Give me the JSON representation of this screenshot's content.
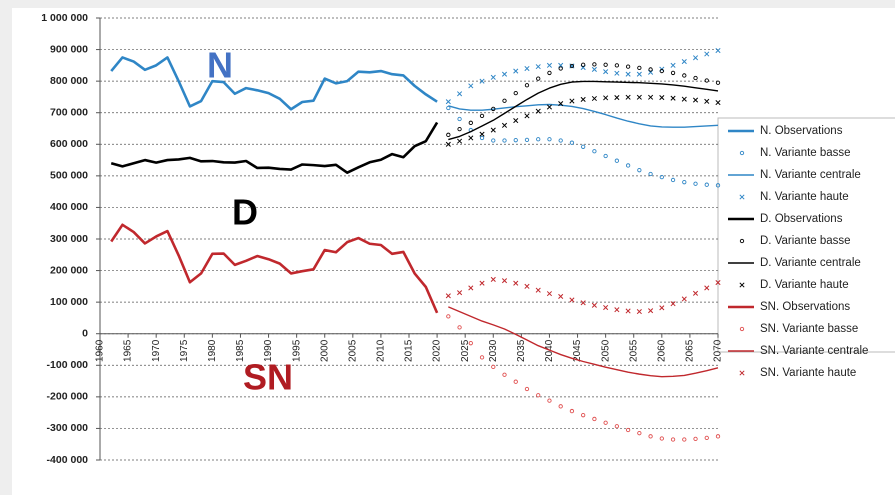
{
  "chart_data": {
    "type": "line",
    "annotations": [
      {
        "text": "N",
        "color": "#4472c4"
      },
      {
        "text": "D",
        "color": "#000000"
      },
      {
        "text": "SN",
        "color": "#b01c22"
      }
    ],
    "xlim": [
      1960,
      2070
    ],
    "xticks": [
      1960,
      1965,
      1970,
      1975,
      1980,
      1985,
      1990,
      1995,
      2000,
      2005,
      2010,
      2015,
      2020,
      2025,
      2030,
      2035,
      2040,
      2045,
      2050,
      2055,
      2060,
      2065,
      2070
    ],
    "ylim": [
      -400000,
      1000000
    ],
    "yticks": [
      {
        "value": -400000,
        "label": "-400 000"
      },
      {
        "value": -300000,
        "label": "-300 000"
      },
      {
        "value": -200000,
        "label": "-200 000"
      },
      {
        "value": -100000,
        "label": "-100 000"
      },
      0,
      {
        "value": 100000,
        "label": "100 000"
      },
      {
        "value": 200000,
        "label": "200 000"
      },
      {
        "value": 300000,
        "label": "300 000"
      },
      {
        "value": 400000,
        "label": "400 000"
      },
      {
        "value": 500000,
        "label": "500 000"
      },
      {
        "value": 600000,
        "label": "600 000"
      },
      {
        "value": 700000,
        "label": "700 000"
      },
      {
        "value": 800000,
        "label": "800 000"
      },
      {
        "value": 900000,
        "label": "900 000"
      },
      {
        "value": 1000000,
        "label": "1 000 000"
      }
    ],
    "grid": true,
    "legend": "right",
    "series": [
      {
        "name": "N. Observations",
        "color": "#2f86c6",
        "style": "thick-line",
        "x": [
          1962,
          1964,
          1966,
          1968,
          1970,
          1972,
          1974,
          1976,
          1978,
          1980,
          1982,
          1984,
          1986,
          1988,
          1990,
          1992,
          1994,
          1996,
          1998,
          2000,
          2002,
          2004,
          2006,
          2008,
          2010,
          2012,
          2014,
          2016,
          2018,
          2020
        ],
        "values": [
          832000,
          875000,
          862000,
          836000,
          850000,
          875000,
          800000,
          720000,
          737000,
          800000,
          797000,
          760000,
          778000,
          771000,
          762000,
          744000,
          711000,
          734000,
          738000,
          808000,
          793000,
          800000,
          830000,
          828000,
          832000,
          822000,
          818000,
          785000,
          758000,
          735000
        ]
      },
      {
        "name": "N. Variante basse",
        "color": "#2f86c6",
        "style": "circle",
        "x": [
          2022,
          2024,
          2026,
          2028,
          2030,
          2032,
          2034,
          2036,
          2038,
          2040,
          2042,
          2044,
          2046,
          2048,
          2050,
          2052,
          2054,
          2056,
          2058,
          2060,
          2062,
          2064,
          2066,
          2068,
          2070
        ],
        "values": [
          715000,
          680000,
          645000,
          620000,
          612000,
          612000,
          613000,
          614000,
          616000,
          616000,
          612000,
          605000,
          592000,
          578000,
          563000,
          548000,
          533000,
          518000,
          506000,
          496000,
          487000,
          480000,
          475000,
          472000,
          470000
        ]
      },
      {
        "name": "N. Variante centrale",
        "color": "#2f86c6",
        "style": "line",
        "x": [
          2022,
          2024,
          2026,
          2028,
          2030,
          2032,
          2034,
          2036,
          2038,
          2040,
          2042,
          2044,
          2046,
          2048,
          2050,
          2052,
          2054,
          2056,
          2058,
          2060,
          2062,
          2064,
          2066,
          2068,
          2070
        ],
        "values": [
          722000,
          712000,
          708000,
          708000,
          711000,
          715000,
          719000,
          722000,
          725000,
          726000,
          724000,
          720000,
          713000,
          704000,
          694000,
          683000,
          673000,
          665000,
          658000,
          655000,
          654000,
          654000,
          656000,
          658000,
          660000
        ]
      },
      {
        "name": "N. Variante haute",
        "color": "#2f86c6",
        "style": "cross",
        "x": [
          2022,
          2024,
          2026,
          2028,
          2030,
          2032,
          2034,
          2036,
          2038,
          2040,
          2042,
          2044,
          2046,
          2048,
          2050,
          2052,
          2054,
          2056,
          2058,
          2060,
          2062,
          2064,
          2066,
          2068,
          2070
        ],
        "values": [
          735000,
          760000,
          785000,
          800000,
          812000,
          822000,
          832000,
          840000,
          846000,
          850000,
          850000,
          848000,
          843000,
          837000,
          830000,
          825000,
          822000,
          822000,
          828000,
          838000,
          850000,
          862000,
          874000,
          886000,
          897000
        ]
      },
      {
        "name": "D. Observations",
        "color": "#000000",
        "style": "thick-line",
        "x": [
          1962,
          1964,
          1966,
          1968,
          1970,
          1972,
          1974,
          1976,
          1978,
          1980,
          1982,
          1984,
          1986,
          1988,
          1990,
          1992,
          1994,
          1996,
          1998,
          2000,
          2002,
          2004,
          2006,
          2008,
          2010,
          2012,
          2014,
          2016,
          2018,
          2020
        ],
        "values": [
          540000,
          530000,
          540000,
          550000,
          542000,
          550000,
          552000,
          557000,
          546000,
          547000,
          543000,
          542000,
          547000,
          525000,
          526000,
          522000,
          520000,
          536000,
          534000,
          531000,
          535000,
          510000,
          527000,
          543000,
          551000,
          569000,
          559000,
          594000,
          610000,
          669000
        ]
      },
      {
        "name": "D. Variante basse",
        "color": "#000000",
        "style": "circle",
        "x": [
          2022,
          2024,
          2026,
          2028,
          2030,
          2032,
          2034,
          2036,
          2038,
          2040,
          2042,
          2044,
          2046,
          2048,
          2050,
          2052,
          2054,
          2056,
          2058,
          2060,
          2062,
          2064,
          2066,
          2068,
          2070
        ],
        "values": [
          630000,
          648000,
          668000,
          690000,
          712000,
          738000,
          762000,
          787000,
          808000,
          826000,
          840000,
          848000,
          852000,
          853000,
          852000,
          850000,
          846000,
          842000,
          837000,
          832000,
          826000,
          818000,
          810000,
          802000,
          795000
        ]
      },
      {
        "name": "D. Variante centrale",
        "color": "#000000",
        "style": "line",
        "x": [
          2022,
          2024,
          2026,
          2028,
          2030,
          2032,
          2034,
          2036,
          2038,
          2040,
          2042,
          2044,
          2046,
          2048,
          2050,
          2052,
          2054,
          2056,
          2058,
          2060,
          2062,
          2064,
          2066,
          2068,
          2070
        ],
        "values": [
          615000,
          625000,
          640000,
          658000,
          676000,
          698000,
          720000,
          742000,
          762000,
          778000,
          790000,
          797000,
          799000,
          799000,
          798000,
          797000,
          796000,
          795000,
          793000,
          791000,
          788000,
          784000,
          779000,
          774000,
          769000
        ]
      },
      {
        "name": "D. Variante haute",
        "color": "#000000",
        "style": "cross",
        "x": [
          2022,
          2024,
          2026,
          2028,
          2030,
          2032,
          2034,
          2036,
          2038,
          2040,
          2042,
          2044,
          2046,
          2048,
          2050,
          2052,
          2054,
          2056,
          2058,
          2060,
          2062,
          2064,
          2066,
          2068,
          2070
        ],
        "values": [
          600000,
          610000,
          620000,
          632000,
          645000,
          660000,
          675000,
          690000,
          705000,
          718000,
          729000,
          737000,
          742000,
          745000,
          747000,
          748000,
          749000,
          749000,
          749000,
          748000,
          746000,
          743000,
          740000,
          736000,
          732000
        ]
      },
      {
        "name": "SN. Observations",
        "color": "#c0282d",
        "style": "thick-line",
        "x": [
          1962,
          1964,
          1966,
          1968,
          1970,
          1972,
          1974,
          1976,
          1978,
          1980,
          1982,
          1984,
          1986,
          1988,
          1990,
          1992,
          1994,
          1996,
          1998,
          2000,
          2002,
          2004,
          2006,
          2008,
          2010,
          2012,
          2014,
          2016,
          2018,
          2020
        ],
        "values": [
          292000,
          345000,
          322000,
          286000,
          308000,
          325000,
          248000,
          163000,
          191000,
          253000,
          254000,
          218000,
          231000,
          246000,
          236000,
          222000,
          191000,
          198000,
          204000,
          265000,
          258000,
          290000,
          303000,
          285000,
          281000,
          253000,
          259000,
          191000,
          148000,
          66000
        ]
      },
      {
        "name": "SN. Variante basse",
        "color": "#e05050",
        "style": "circle",
        "x": [
          2022,
          2024,
          2026,
          2028,
          2030,
          2032,
          2034,
          2036,
          2038,
          2040,
          2042,
          2044,
          2046,
          2048,
          2050,
          2052,
          2054,
          2056,
          2058,
          2060,
          2062,
          2064,
          2066,
          2068,
          2070
        ],
        "values": [
          55000,
          20000,
          -30000,
          -75000,
          -105000,
          -130000,
          -152000,
          -175000,
          -195000,
          -212000,
          -230000,
          -245000,
          -258000,
          -270000,
          -282000,
          -293000,
          -305000,
          -315000,
          -325000,
          -332000,
          -335000,
          -335000,
          -333000,
          -330000,
          -325000
        ]
      },
      {
        "name": "SN. Variante centrale",
        "color": "#c0282d",
        "style": "line",
        "x": [
          2022,
          2024,
          2026,
          2028,
          2030,
          2032,
          2034,
          2036,
          2038,
          2040,
          2042,
          2044,
          2046,
          2048,
          2050,
          2052,
          2054,
          2056,
          2058,
          2060,
          2062,
          2064,
          2066,
          2068,
          2070
        ],
        "values": [
          85000,
          70000,
          55000,
          40000,
          28000,
          15000,
          -2000,
          -20000,
          -38000,
          -52000,
          -66000,
          -78000,
          -88000,
          -97000,
          -106000,
          -114000,
          -122000,
          -128000,
          -133000,
          -136000,
          -135000,
          -132000,
          -125000,
          -117000,
          -108000
        ]
      },
      {
        "name": "SN. Variante haute",
        "color": "#c0282d",
        "style": "cross",
        "x": [
          2022,
          2024,
          2026,
          2028,
          2030,
          2032,
          2034,
          2036,
          2038,
          2040,
          2042,
          2044,
          2046,
          2048,
          2050,
          2052,
          2054,
          2056,
          2058,
          2060,
          2062,
          2064,
          2066,
          2068,
          2070
        ],
        "values": [
          120000,
          130000,
          145000,
          160000,
          172000,
          168000,
          160000,
          150000,
          138000,
          127000,
          118000,
          107000,
          98000,
          90000,
          83000,
          76000,
          72000,
          70000,
          73000,
          82000,
          95000,
          110000,
          128000,
          145000,
          162000
        ]
      }
    ]
  }
}
